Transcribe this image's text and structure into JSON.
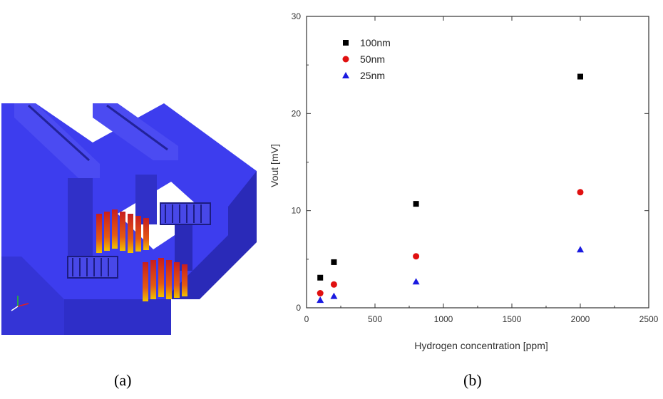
{
  "captions": {
    "a": "(a)",
    "b": "(b)"
  },
  "colors": {
    "device_blue": "#3d3dee",
    "device_blue_dark": "#2a2ab8",
    "device_blue_light": "#5a5af6",
    "heater_red": "#c81e1e",
    "heater_yellow": "#f2c200",
    "series_black": "#000000",
    "series_red": "#e01010",
    "series_blue": "#1a1ae0"
  },
  "illustration": {
    "subject": "3D render of micro-heater sensor structure",
    "icon": "sensor-device-3d-icon"
  },
  "chart_data": {
    "type": "scatter",
    "xlabel": "Hydrogen concentration [ppm]",
    "ylabel": "Vout [mV]",
    "xlim": [
      0,
      2500
    ],
    "ylim": [
      0,
      30
    ],
    "xticks": [
      0,
      500,
      1000,
      1500,
      2000,
      2500
    ],
    "yticks": [
      0,
      10,
      20,
      30
    ],
    "grid": false,
    "legend_position": "top-left",
    "series": [
      {
        "name": "100nm",
        "marker": "square",
        "color": "#000000",
        "x": [
          100,
          200,
          800,
          2000
        ],
        "y": [
          3.1,
          4.7,
          10.7,
          23.8
        ]
      },
      {
        "name": "50nm",
        "marker": "circle",
        "color": "#e01010",
        "x": [
          100,
          200,
          800,
          2000
        ],
        "y": [
          1.5,
          2.4,
          5.3,
          11.9
        ]
      },
      {
        "name": "25nm",
        "marker": "triangle",
        "color": "#1a1ae0",
        "x": [
          100,
          200,
          800,
          2000
        ],
        "y": [
          0.8,
          1.2,
          2.7,
          6.0
        ]
      }
    ]
  }
}
